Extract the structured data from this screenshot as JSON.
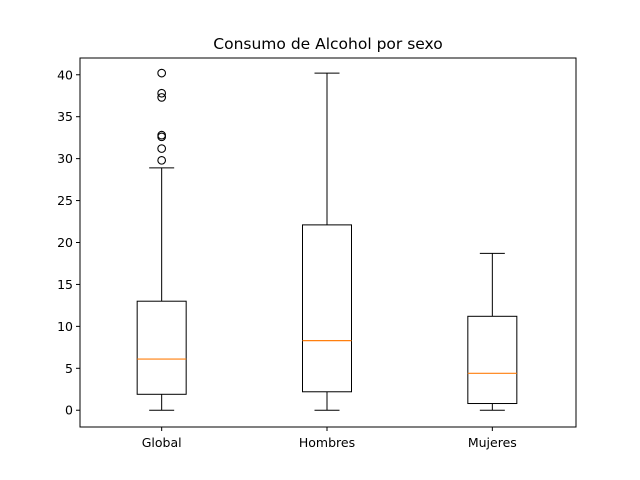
{
  "chart_data": {
    "type": "boxplot",
    "title": "Consumo de Alcohol por sexo",
    "xlabel": "",
    "ylabel": "",
    "ylim": [
      -2,
      42
    ],
    "y_ticks": [
      0,
      5,
      10,
      15,
      20,
      25,
      30,
      35,
      40
    ],
    "grid": false,
    "categories": [
      "Global",
      "Hombres",
      "Mujeres"
    ],
    "boxes": [
      {
        "category": "Global",
        "whisker_low": 0,
        "q1": 1.9,
        "median": 6.1,
        "q3": 13.0,
        "whisker_high": 28.9,
        "outliers": [
          29.8,
          31.2,
          32.6,
          32.8,
          37.3,
          37.8,
          40.2
        ]
      },
      {
        "category": "Hombres",
        "whisker_low": 0,
        "q1": 2.2,
        "median": 8.3,
        "q3": 22.1,
        "whisker_high": 40.2,
        "outliers": []
      },
      {
        "category": "Mujeres",
        "whisker_low": 0,
        "q1": 0.8,
        "median": 4.4,
        "q3": 11.2,
        "whisker_high": 18.7,
        "outliers": []
      }
    ],
    "colors": {
      "box": "#000000",
      "median": "#ff7f0e",
      "outlier": "#000000"
    }
  }
}
